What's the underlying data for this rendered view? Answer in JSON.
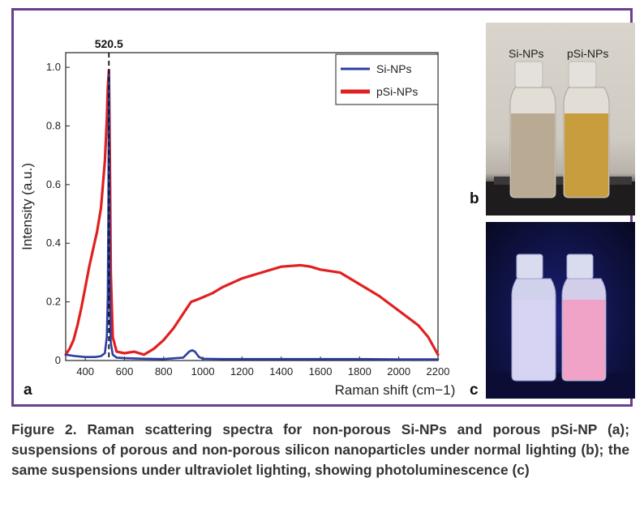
{
  "chart_data": {
    "type": "line",
    "xlabel": "Raman shift (cm−1)",
    "ylabel": "Intensity (a.u.)",
    "xlim": [
      300,
      2200
    ],
    "ylim": [
      0,
      1.05
    ],
    "x_ticks": [
      400,
      600,
      800,
      1000,
      1200,
      1400,
      1600,
      1800,
      2000,
      2200
    ],
    "y_ticks": [
      0,
      0.2,
      0.4,
      0.6,
      0.8,
      1.0
    ],
    "x_tick_labels": [
      "400",
      "600",
      "800",
      "1000",
      "1200",
      "1400",
      "1600",
      "1800",
      "2000",
      "2200"
    ],
    "y_tick_labels": [
      "0",
      "0.2",
      "0.4",
      "0.6",
      "0.8",
      "1.0"
    ],
    "legend_placement": "top-right",
    "annotation": {
      "x": 520.5,
      "label": "520.5",
      "style": "dashed vertical line"
    },
    "series": [
      {
        "name": "Si-NPs",
        "color": "#2b3fa0",
        "x": [
          300,
          350,
          400,
          450,
          480,
          500,
          510,
          515,
          518,
          520.5,
          523,
          526,
          530,
          540,
          560,
          600,
          700,
          800,
          900,
          930,
          945,
          960,
          980,
          1000,
          1100,
          1200,
          1400,
          1600,
          1800,
          2000,
          2200
        ],
        "y": [
          0.02,
          0.015,
          0.012,
          0.012,
          0.015,
          0.025,
          0.08,
          0.22,
          0.55,
          0.98,
          0.55,
          0.18,
          0.06,
          0.02,
          0.01,
          0.008,
          0.006,
          0.005,
          0.01,
          0.03,
          0.035,
          0.03,
          0.012,
          0.006,
          0.005,
          0.005,
          0.005,
          0.005,
          0.005,
          0.004,
          0.004
        ]
      },
      {
        "name": "pSi-NPs",
        "color": "#e02020",
        "x": [
          300,
          320,
          340,
          360,
          380,
          400,
          420,
          440,
          460,
          480,
          500,
          510,
          515,
          520.5,
          525,
          530,
          540,
          560,
          600,
          650,
          700,
          750,
          800,
          850,
          900,
          940,
          980,
          1050,
          1100,
          1200,
          1300,
          1400,
          1500,
          1550,
          1600,
          1700,
          1800,
          1900,
          2000,
          2100,
          2150,
          2200
        ],
        "y": [
          0.02,
          0.04,
          0.07,
          0.12,
          0.18,
          0.25,
          0.32,
          0.38,
          0.44,
          0.52,
          0.68,
          0.82,
          0.93,
          0.99,
          0.7,
          0.3,
          0.08,
          0.03,
          0.025,
          0.03,
          0.02,
          0.04,
          0.07,
          0.11,
          0.16,
          0.2,
          0.21,
          0.23,
          0.25,
          0.28,
          0.3,
          0.32,
          0.325,
          0.32,
          0.31,
          0.3,
          0.26,
          0.22,
          0.17,
          0.12,
          0.08,
          0.02
        ]
      }
    ]
  },
  "panels": {
    "a": "a",
    "b": "b",
    "c": "c"
  },
  "photo_b": {
    "label_left": "Si-NPs",
    "label_right": "pSi-NPs"
  },
  "caption": "Figure 2. Raman scattering spectra for non-porous Si-NPs and porous pSi-NP (a); suspensions of porous and non-porous silicon nanoparticles under normal lighting (b); the same suspensions under ultraviolet lighting, showing photoluminescence (c)",
  "colors": {
    "frame": "#6b3f8f"
  }
}
